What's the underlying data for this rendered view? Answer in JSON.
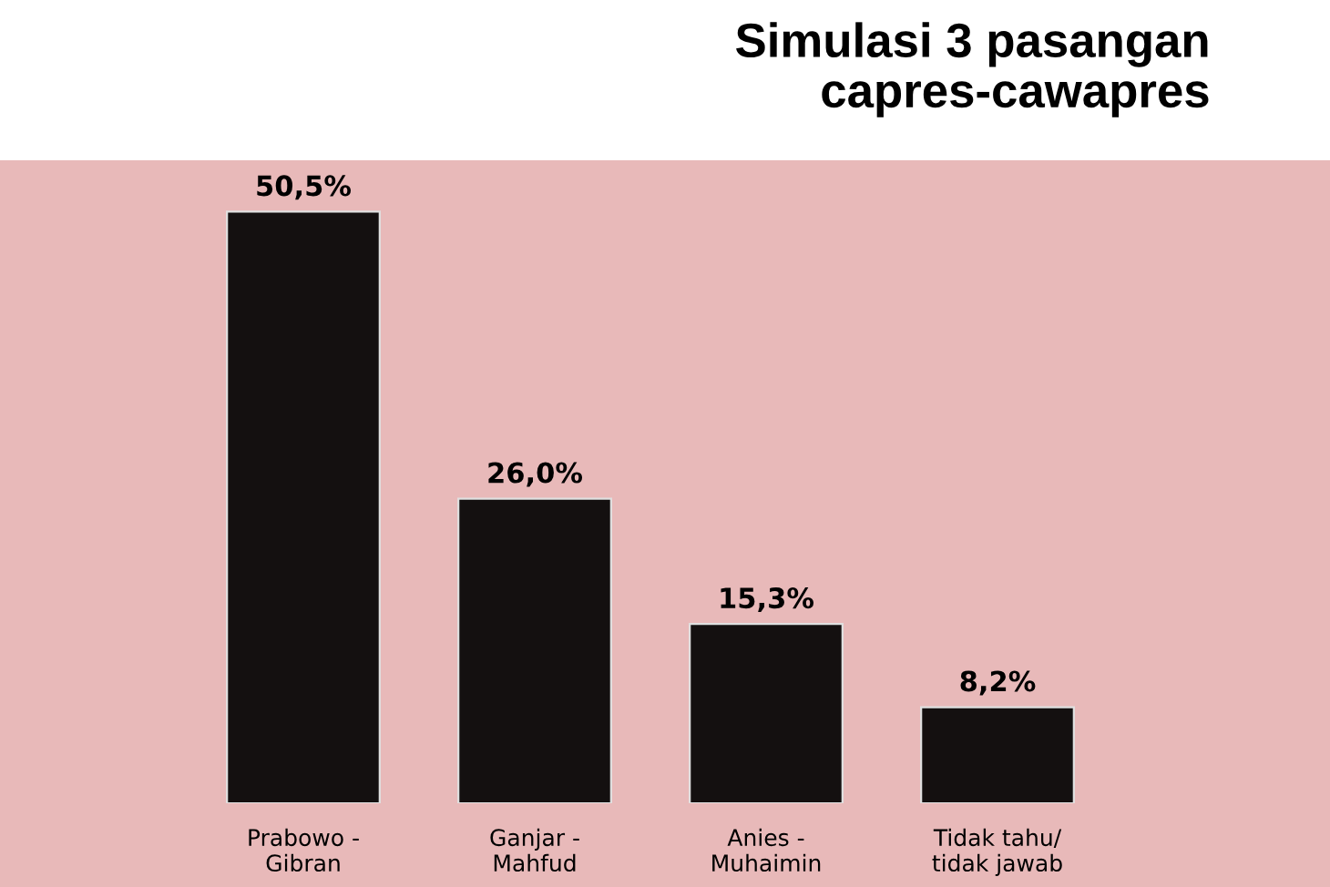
{
  "chart_data": {
    "type": "bar",
    "title": "Simulasi 3 pasangan\ncapres-cawapres",
    "categories": [
      "Prabowo -\nGibran",
      "Ganjar -\nMahfud",
      "Anies -\nMuhaimin",
      "Tidak tahu/\ntidak jawab"
    ],
    "values": [
      50.5,
      26.0,
      15.3,
      8.2
    ],
    "value_labels": [
      "50,5%",
      "26,0%",
      "15,3%",
      "8,2%"
    ],
    "color": "#141010"
  }
}
